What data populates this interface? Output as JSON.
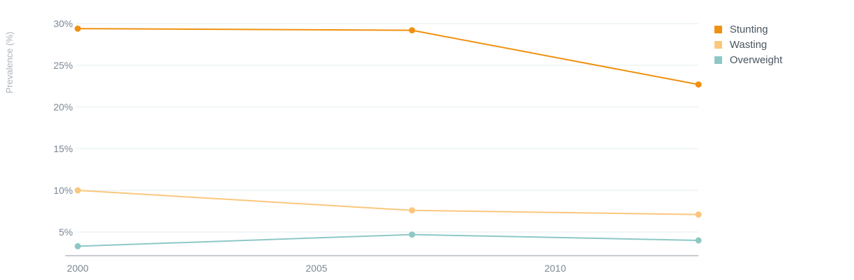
{
  "chart_data": {
    "type": "line",
    "title": "",
    "xlabel": "",
    "ylabel": "Prevalence (%)",
    "x": [
      2000,
      2007,
      2013
    ],
    "xlim": [
      2000,
      2013
    ],
    "ylim": [
      2,
      30
    ],
    "x_ticks": [
      2000,
      2005,
      2010
    ],
    "x_tick_labels": [
      "2000",
      "2005",
      "2010"
    ],
    "y_ticks": [
      5,
      10,
      15,
      20,
      25,
      30
    ],
    "y_tick_labels": [
      "5%",
      "10%",
      "15%",
      "20%",
      "25%",
      "30%"
    ],
    "grid": true,
    "legend_position": "top-right",
    "series": [
      {
        "name": "Stunting",
        "color": "#f0900f",
        "values": [
          29.4,
          29.2,
          22.7
        ]
      },
      {
        "name": "Wasting",
        "color": "#fbc77c",
        "values": [
          10.0,
          7.6,
          7.1
        ]
      },
      {
        "name": "Overweight",
        "color": "#8dc8c6",
        "values": [
          3.3,
          4.7,
          4.0
        ]
      }
    ]
  }
}
